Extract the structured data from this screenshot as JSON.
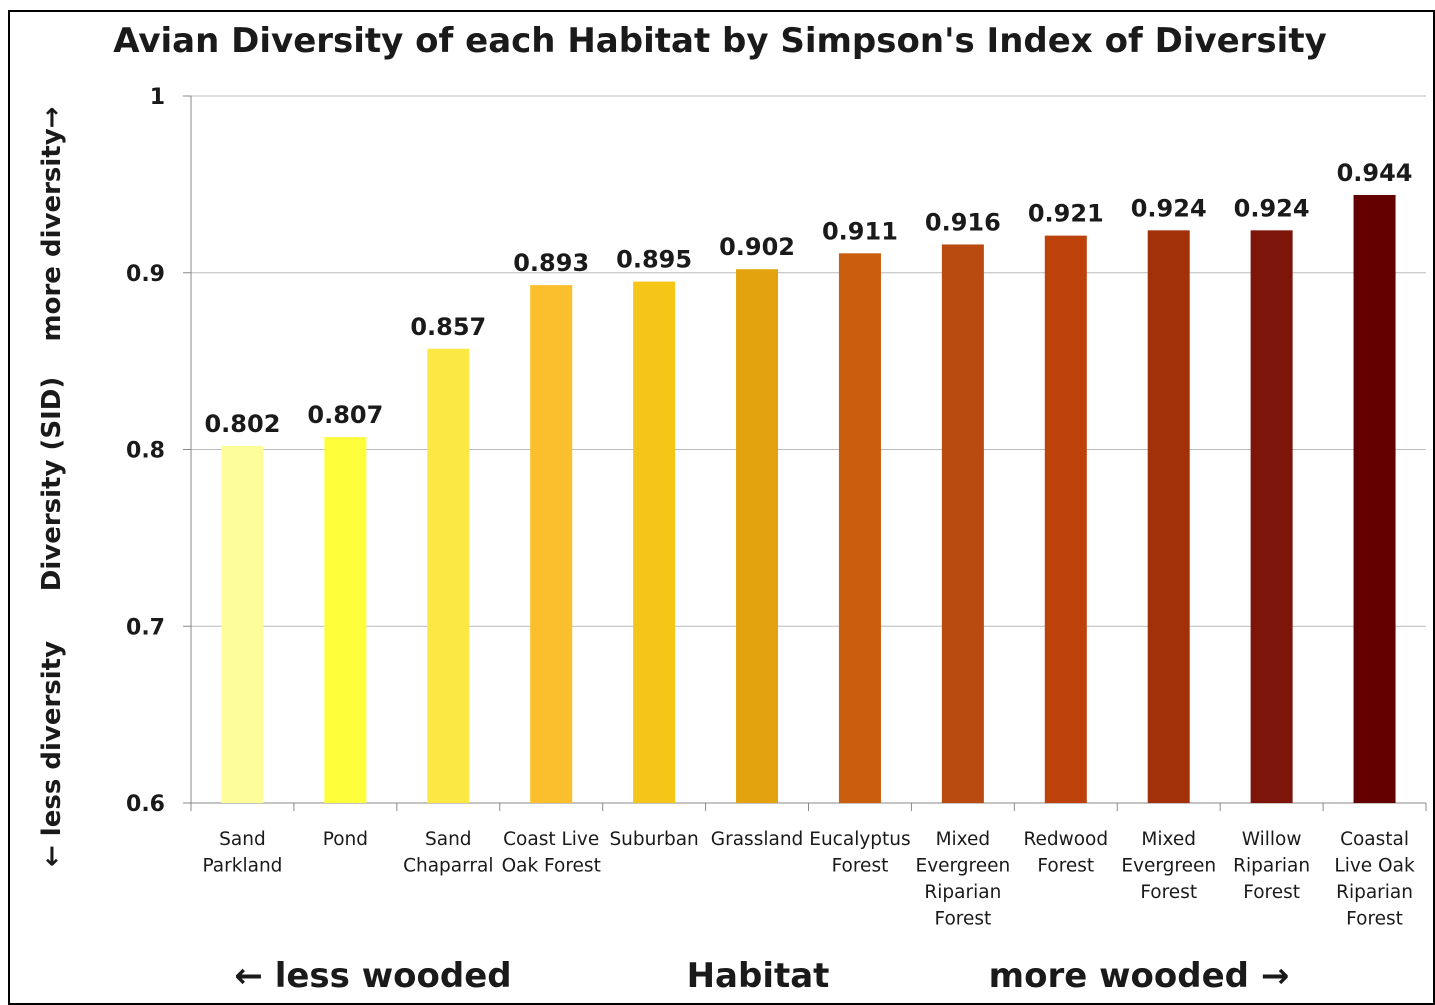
{
  "chart_data": {
    "type": "bar",
    "title": "Avian Diversity of each Habitat by Simpson's Index of Diversity",
    "ylabel": {
      "low": "← less diversity",
      "mid": "Diversity (SID)",
      "high": "more diversity→"
    },
    "xlabel": {
      "left": "← less wooded",
      "mid": "Habitat",
      "right": "more wooded →"
    },
    "ylim": [
      0.6,
      1
    ],
    "yticks": [
      "0.6",
      "0.7",
      "0.8",
      "0.9",
      "1"
    ],
    "grid": true,
    "legend": "none",
    "categories": [
      [
        "Sand",
        "Parkland"
      ],
      [
        "Pond"
      ],
      [
        "Sand",
        "Chaparral"
      ],
      [
        "Coast Live",
        "Oak Forest"
      ],
      [
        "Suburban"
      ],
      [
        "Grassland"
      ],
      [
        "Eucalyptus",
        "Forest"
      ],
      [
        "Mixed",
        "Evergreen",
        "Riparian",
        "Forest"
      ],
      [
        "Redwood",
        "Forest"
      ],
      [
        "Mixed",
        "Evergreen",
        "Forest"
      ],
      [
        "Willow",
        "Riparian",
        "Forest"
      ],
      [
        "Coastal",
        "Live Oak",
        "Riparian",
        "Forest"
      ]
    ],
    "values": [
      0.802,
      0.807,
      0.857,
      0.893,
      0.895,
      0.902,
      0.911,
      0.916,
      0.921,
      0.924,
      0.924,
      0.944
    ],
    "value_labels": [
      "0.802",
      "0.807",
      "0.857",
      "0.893",
      "0.895",
      "0.902",
      "0.911",
      "0.916",
      "0.921",
      "0.924",
      "0.924",
      "0.944"
    ],
    "colors": [
      "#FDFD9A",
      "#FDFD3A",
      "#FCE845",
      "#FBBE2C",
      "#F5C518",
      "#E2A30E",
      "#CB5E0C",
      "#B94A10",
      "#BC410A",
      "#A23009",
      "#7D150A",
      "#650000"
    ],
    "gridline_color": "#bbbbbb",
    "axis_color": "#888888"
  }
}
